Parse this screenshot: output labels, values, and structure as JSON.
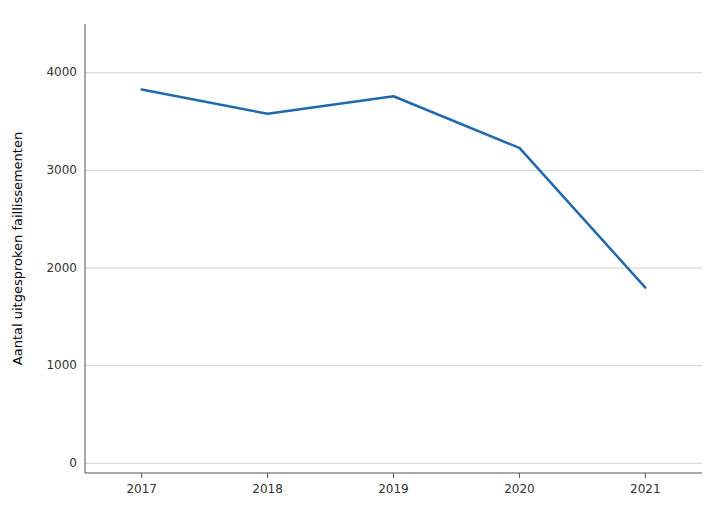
{
  "chart_data": {
    "type": "line",
    "ylabel": "Aantal uitgesproken faillissementen",
    "x": [
      2017,
      2018,
      2019,
      2020,
      2021
    ],
    "values": [
      3830,
      3580,
      3760,
      3230,
      1800
    ],
    "color": "#1f6aad",
    "ylim": [
      -100,
      4500
    ],
    "yticks": [
      0,
      1000,
      2000,
      3000,
      4000
    ],
    "xlim": [
      2016.55,
      2021.45
    ],
    "xticks": [
      2017,
      2018,
      2019,
      2020,
      2021
    ],
    "grid": true
  }
}
